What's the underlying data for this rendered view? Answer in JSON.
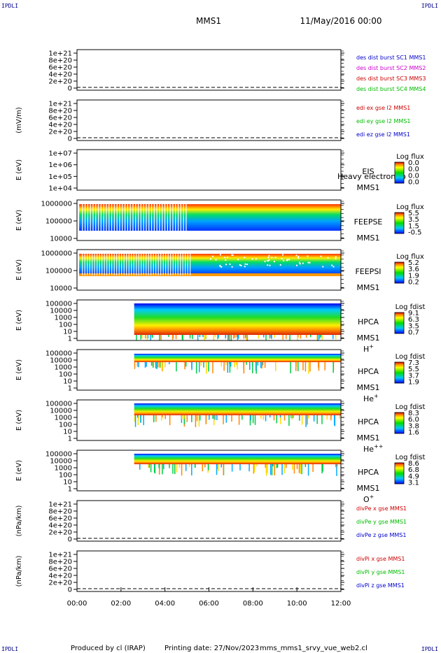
{
  "header": {
    "corner_label": "IPDLI",
    "spacecraft": "MMS1",
    "date": "11/May/2016 00:00"
  },
  "footer": {
    "produced_by": "Produced by cl (IRAP)",
    "printing_date": "Printing date: 27/Nov/2023",
    "filename": "mms_mms1_srvy_vue_web2.cl"
  },
  "chart_data": {
    "type": "stacked-timeseries",
    "x_ticks": [
      "00:00",
      "02:00",
      "04:00",
      "06:00",
      "08:00",
      "10:00",
      "12:00"
    ],
    "x_range_hours": [
      0,
      12
    ],
    "panels": [
      {
        "id": "des-dist-burst",
        "kind": "line",
        "ylabel": "",
        "y_ticks": [
          "1e+21",
          "8e+20",
          "6e+20",
          "4e+20",
          "2e+20",
          "0"
        ],
        "ylim": [
          0,
          1e+21
        ],
        "zero_dashed": true,
        "legend": [
          {
            "text": "des dist burst SC1 MMS1",
            "color": "#0000cc"
          },
          {
            "text": "des dist burst SC2 MMS2",
            "color": "#cc00cc"
          },
          {
            "text": "des dist burst SC3 MMS3",
            "color": "#cc0000"
          },
          {
            "text": "des dist burst SC4 MMS4",
            "color": "#00bb00"
          }
        ]
      },
      {
        "id": "edi-e-gse",
        "kind": "line",
        "ylabel": "(mV/m)",
        "y_ticks": [
          "1e+21",
          "8e+20",
          "6e+20",
          "4e+20",
          "2e+20",
          "0"
        ],
        "ylim": [
          0,
          1e+21
        ],
        "zero_dashed": true,
        "legend": [
          {
            "text": "edi ex gse l2 MMS1",
            "color": "#cc0000"
          },
          {
            "text": "edi ey gse l2 MMS1",
            "color": "#00bb00"
          },
          {
            "text": "edi ez gse l2 MMS1",
            "color": "#0000cc"
          }
        ]
      },
      {
        "id": "eis",
        "kind": "spectrogram",
        "ylabel": "E (eV)",
        "y_ticks": [
          "1e+07",
          "1e+06",
          "1e+05",
          "1e+04"
        ],
        "right_labels": [
          "EIS",
          "MMS1"
        ],
        "overlay_text": "Heavy electron to",
        "cbar_title": "Log flux",
        "cbar_ticks": [
          "0.0",
          "0.0",
          "0.0",
          "0.0"
        ],
        "data_extent_hours": [
          0,
          0
        ]
      },
      {
        "id": "feepse",
        "kind": "spectrogram",
        "ylabel": "E (eV)",
        "y_ticks": [
          "1000000",
          "100000",
          "10000"
        ],
        "right_labels": [
          "FEEPSE",
          "MMS1"
        ],
        "cbar_title": "Log flux",
        "cbar_ticks": [
          "5.5",
          "3.5",
          "1.5",
          "-0.5"
        ],
        "data_extent_hours": [
          0.1,
          12
        ]
      },
      {
        "id": "feepsi",
        "kind": "spectrogram",
        "ylabel": "E (eV)",
        "y_ticks": [
          "1000000",
          "100000",
          "10000"
        ],
        "right_labels": [
          "FEEPSI",
          "MMS1"
        ],
        "cbar_title": "Log flux",
        "cbar_ticks": [
          "5.2",
          "3.6",
          "1.9",
          "0.2"
        ],
        "data_extent_hours": [
          0.1,
          12
        ]
      },
      {
        "id": "hpca-h",
        "kind": "spectrogram",
        "ylabel": "E (eV)",
        "y_ticks": [
          "100000",
          "10000",
          "1000",
          "100",
          "10",
          "1"
        ],
        "right_labels": [
          "HPCA",
          "MMS1"
        ],
        "species": "H",
        "species_sup": "+",
        "cbar_title": "Log fdist",
        "cbar_ticks": [
          "9.1",
          "6.3",
          "3.5",
          "0.7"
        ],
        "data_extent_hours": [
          2.6,
          12
        ]
      },
      {
        "id": "hpca-he",
        "kind": "spectrogram",
        "ylabel": "E (eV)",
        "y_ticks": [
          "100000",
          "10000",
          "1000",
          "100",
          "10",
          "1"
        ],
        "right_labels": [
          "HPCA",
          "MMS1"
        ],
        "species": "He",
        "species_sup": "+",
        "cbar_title": "Log fdist",
        "cbar_ticks": [
          "7.3",
          "5.5",
          "3.7",
          "1.9"
        ],
        "data_extent_hours": [
          2.6,
          12
        ]
      },
      {
        "id": "hpca-he2",
        "kind": "spectrogram",
        "ylabel": "E (eV)",
        "y_ticks": [
          "100000",
          "10000",
          "1000",
          "100",
          "10",
          "1"
        ],
        "right_labels": [
          "HPCA",
          "MMS1"
        ],
        "species": "He",
        "species_sup": "++",
        "cbar_title": "Log fdist",
        "cbar_ticks": [
          "8.3",
          "6.0",
          "3.8",
          "1.6"
        ],
        "data_extent_hours": [
          2.6,
          12
        ]
      },
      {
        "id": "hpca-o",
        "kind": "spectrogram",
        "ylabel": "E (eV)",
        "y_ticks": [
          "100000",
          "10000",
          "1000",
          "100",
          "10",
          "1"
        ],
        "right_labels": [
          "HPCA",
          "MMS1"
        ],
        "species": "O",
        "species_sup": "+",
        "cbar_title": "Log fdist",
        "cbar_ticks": [
          "8.6",
          "6.8",
          "4.9",
          "3.1"
        ],
        "data_extent_hours": [
          2.6,
          12
        ]
      },
      {
        "id": "divpe",
        "kind": "line",
        "ylabel": "(nPa/km)",
        "y_ticks": [
          "1e+21",
          "8e+20",
          "6e+20",
          "4e+20",
          "2e+20",
          "0"
        ],
        "ylim": [
          0,
          1e+21
        ],
        "zero_dashed": true,
        "legend": [
          {
            "text": "divPe x gse MMS1",
            "color": "#cc0000"
          },
          {
            "text": "divPe y gse MMS1",
            "color": "#00bb00"
          },
          {
            "text": "divPe z gse MMS1",
            "color": "#0000cc"
          }
        ]
      },
      {
        "id": "divpi",
        "kind": "line",
        "ylabel": "(nPa/km)",
        "y_ticks": [
          "1e+21",
          "8e+20",
          "6e+20",
          "4e+20",
          "2e+20",
          "0"
        ],
        "ylim": [
          0,
          1e+21
        ],
        "zero_dashed": true,
        "legend": [
          {
            "text": "divPi x gse MMS1",
            "color": "#cc0000"
          },
          {
            "text": "divPi y gse MMS1",
            "color": "#00bb00"
          },
          {
            "text": "divPi z gse MMS1",
            "color": "#0000cc"
          }
        ]
      }
    ]
  }
}
